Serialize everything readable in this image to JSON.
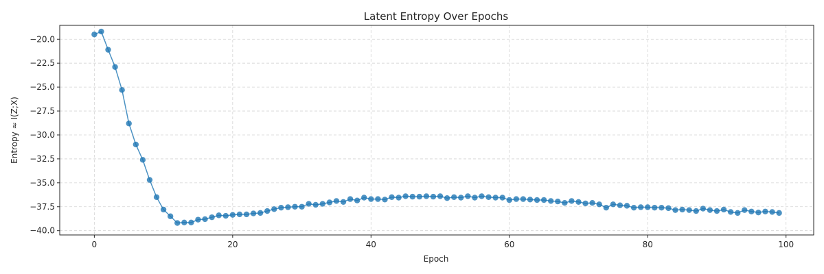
{
  "chart_data": {
    "type": "line",
    "title": "Latent Entropy Over Epochs",
    "xlabel": "Epoch",
    "ylabel": "Entropy ≈ I(Z;X)",
    "xlim": [
      -5,
      104
    ],
    "ylim": [
      -40.45,
      -18.55
    ],
    "xticks": [
      0,
      20,
      40,
      60,
      80,
      100
    ],
    "xtick_labels": [
      "0",
      "20",
      "40",
      "60",
      "80",
      "100"
    ],
    "yticks": [
      -20.0,
      -22.5,
      -25.0,
      -27.5,
      -30.0,
      -32.5,
      -35.0,
      -37.5,
      -40.0
    ],
    "ytick_labels": [
      "−20.0",
      "−22.5",
      "−25.0",
      "−27.5",
      "−30.0",
      "−32.5",
      "−35.0",
      "−37.5",
      "−40.0"
    ],
    "grid": true,
    "legend": "none",
    "markers": true,
    "series": [
      {
        "color": "#1f77b4",
        "x": [
          0,
          1,
          2,
          3,
          4,
          5,
          6,
          7,
          8,
          9,
          10,
          11,
          12,
          13,
          14,
          15,
          16,
          17,
          18,
          19,
          20,
          21,
          22,
          23,
          24,
          25,
          26,
          27,
          28,
          29,
          30,
          31,
          32,
          33,
          34,
          35,
          36,
          37,
          38,
          39,
          40,
          41,
          42,
          43,
          44,
          45,
          46,
          47,
          48,
          49,
          50,
          51,
          52,
          53,
          54,
          55,
          56,
          57,
          58,
          59,
          60,
          61,
          62,
          63,
          64,
          65,
          66,
          67,
          68,
          69,
          70,
          71,
          72,
          73,
          74,
          75,
          76,
          77,
          78,
          79,
          80,
          81,
          82,
          83,
          84,
          85,
          86,
          87,
          88,
          89,
          90,
          91,
          92,
          93,
          94,
          95,
          96,
          97,
          98,
          99
        ],
        "values": [
          -19.5,
          -19.2,
          -21.1,
          -22.9,
          -25.3,
          -28.8,
          -31.0,
          -32.6,
          -34.7,
          -36.5,
          -37.8,
          -38.5,
          -39.2,
          -39.15,
          -39.15,
          -38.85,
          -38.8,
          -38.6,
          -38.4,
          -38.45,
          -38.35,
          -38.3,
          -38.3,
          -38.2,
          -38.15,
          -37.95,
          -37.75,
          -37.6,
          -37.55,
          -37.5,
          -37.5,
          -37.2,
          -37.3,
          -37.2,
          -37.05,
          -36.9,
          -37.0,
          -36.7,
          -36.85,
          -36.55,
          -36.7,
          -36.7,
          -36.75,
          -36.5,
          -36.55,
          -36.4,
          -36.45,
          -36.45,
          -36.4,
          -36.45,
          -36.4,
          -36.6,
          -36.5,
          -36.55,
          -36.4,
          -36.55,
          -36.4,
          -36.5,
          -36.55,
          -36.55,
          -36.8,
          -36.7,
          -36.7,
          -36.75,
          -36.8,
          -36.8,
          -36.9,
          -36.95,
          -37.1,
          -36.9,
          -37.0,
          -37.15,
          -37.1,
          -37.25,
          -37.6,
          -37.25,
          -37.35,
          -37.4,
          -37.6,
          -37.55,
          -37.55,
          -37.6,
          -37.6,
          -37.65,
          -37.85,
          -37.8,
          -37.85,
          -37.95,
          -37.7,
          -37.85,
          -37.95,
          -37.8,
          -38.05,
          -38.15,
          -37.85,
          -38.0,
          -38.1,
          -38.0,
          -38.05,
          -38.15
        ]
      }
    ]
  }
}
